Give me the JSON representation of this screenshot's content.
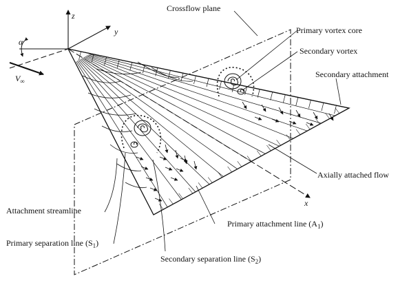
{
  "diagram": {
    "labels": {
      "crossflow_plane": "Crossflow plane",
      "primary_vortex_core": "Primary vortex core",
      "secondary_vortex": "Secondary vortex",
      "secondary_attachment": "Secondary attachment",
      "axially_attached_flow": "Axially attached flow",
      "attachment_streamline": "Attachment streamline",
      "primary_attachment_line": "Primary attachment line (A",
      "primary_attachment_sub": "1",
      "primary_separation_line": "Primary separation line (S",
      "primary_separation_sub": "1",
      "secondary_separation_line": "Secondary separation line (S",
      "secondary_separation_sub": "2",
      "close_paren": ")"
    },
    "axes": {
      "z": "z",
      "y": "y",
      "x": "x"
    },
    "alpha": "α",
    "freestream": {
      "base": "V",
      "sub": "∞"
    },
    "colors": {
      "ink": "#111111",
      "background": "#ffffff"
    }
  }
}
